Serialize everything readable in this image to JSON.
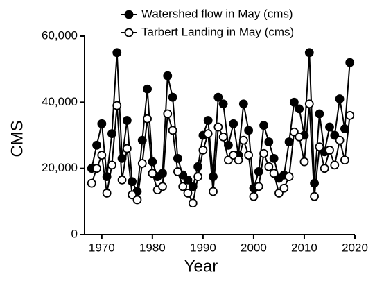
{
  "chart_data": {
    "type": "line",
    "x_label": "Year",
    "y_label": "CMS",
    "x": [
      1968,
      1969,
      1970,
      1971,
      1972,
      1973,
      1974,
      1975,
      1976,
      1977,
      1978,
      1979,
      1980,
      1981,
      1982,
      1983,
      1984,
      1985,
      1986,
      1987,
      1988,
      1989,
      1990,
      1991,
      1992,
      1993,
      1994,
      1995,
      1996,
      1997,
      1998,
      1999,
      2000,
      2001,
      2002,
      2003,
      2004,
      2005,
      2006,
      2007,
      2008,
      2009,
      2010,
      2011,
      2012,
      2013,
      2014,
      2015,
      2016,
      2017,
      2018,
      2019
    ],
    "series": [
      {
        "name": "Watershed flow in May (cms)",
        "color": "#000000",
        "marker_fill": "#000000",
        "values": [
          20000,
          27000,
          33500,
          17500,
          30500,
          55000,
          23000,
          34500,
          16000,
          13000,
          28500,
          44000,
          22000,
          17500,
          18500,
          48000,
          41500,
          23000,
          18000,
          16500,
          14500,
          20500,
          30000,
          34500,
          17500,
          41500,
          39500,
          27000,
          33500,
          24000,
          39500,
          31500,
          14000,
          19000,
          33000,
          28000,
          23000,
          17000,
          18000,
          28000,
          40000,
          38000,
          30000,
          55000,
          15500,
          36500,
          25000,
          32500,
          30000,
          41000,
          32000,
          52000
        ]
      },
      {
        "name": "Tarbert Landing in May (cms)",
        "color": "#000000",
        "marker_fill": "#ffffff",
        "values": [
          15500,
          20000,
          24000,
          12500,
          21000,
          39000,
          16500,
          26000,
          12000,
          10500,
          21500,
          35000,
          18500,
          13500,
          14500,
          36500,
          31500,
          19000,
          14500,
          12500,
          9500,
          17500,
          25500,
          30500,
          13000,
          32500,
          29500,
          22500,
          24000,
          22500,
          28500,
          24000,
          11500,
          14500,
          24500,
          20500,
          18500,
          12500,
          14000,
          17500,
          31000,
          29500,
          22000,
          39500,
          11500,
          26500,
          20000,
          25500,
          21000,
          28500,
          22500,
          36000
        ]
      }
    ],
    "xlim": [
      1966.6,
      2020
    ],
    "xticks": [
      1970,
      1980,
      1990,
      2000,
      2010,
      2020
    ],
    "ylim": [
      0,
      60000
    ],
    "yticks": [
      0,
      {
        "value": 20000,
        "label": "20,000"
      },
      {
        "value": 40000,
        "label": "40,000"
      },
      {
        "value": 60000,
        "label": "60,000"
      }
    ]
  }
}
